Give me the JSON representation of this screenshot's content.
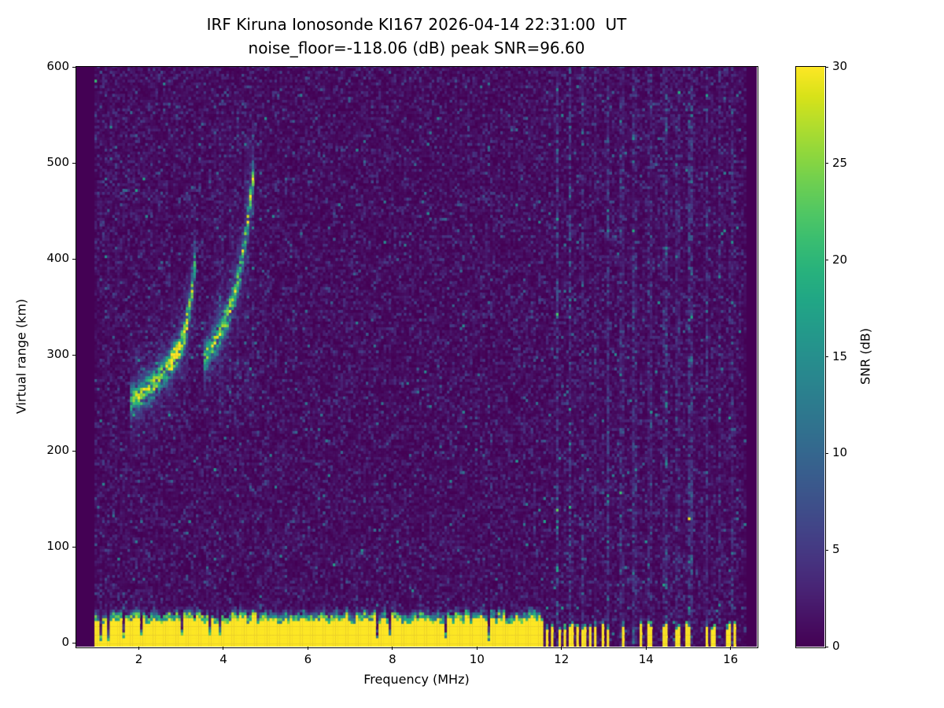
{
  "chart_data": {
    "type": "heatmap",
    "title": "IRF Kiruna Ionosonde KI167 2026-04-14 22:31:00  UT",
    "subtitle": "noise_floor=-118.06 (dB) peak SNR=96.60",
    "station": "IRF Kiruna",
    "instrument": "Ionosonde KI167",
    "timestamp_ut": "2026-04-14 22:31:00",
    "noise_floor_db": -118.06,
    "peak_snr_db": 96.6,
    "xlabel": "Frequency (MHz)",
    "ylabel": "Virtual range (km)",
    "xlim": [
      0.52,
      16.62
    ],
    "ylim": [
      -4,
      600
    ],
    "x_ticks": [
      2,
      4,
      6,
      8,
      10,
      12,
      14,
      16
    ],
    "y_ticks": [
      0,
      100,
      200,
      300,
      400,
      500,
      600
    ],
    "grid": false,
    "colorbar": {
      "label": "SNR (dB)",
      "vmin": 0,
      "vmax": 30,
      "ticks": [
        0,
        5,
        10,
        15,
        20,
        25,
        30
      ],
      "colormap": "viridis"
    },
    "features": {
      "background_noise_db_range": [
        0,
        4
      ],
      "data_freq_range_mhz": [
        0.95,
        16.35
      ],
      "ground_return_band": {
        "range_km": [
          -4,
          30
        ],
        "solid_freq_mhz": [
          0.95,
          11.6
        ],
        "intermittent_freq_mhz": [
          11.62,
          16.3
        ],
        "snr_db": 30
      },
      "echo_traces": [
        {
          "name": "ionospheric-echo-branch-1",
          "points": [
            [
              1.8,
              252
            ],
            [
              2.1,
              260
            ],
            [
              2.4,
              272
            ],
            [
              2.7,
              288
            ],
            [
              2.95,
              305
            ],
            [
              3.1,
              325
            ],
            [
              3.2,
              350
            ],
            [
              3.3,
              380
            ],
            [
              3.35,
              410
            ]
          ]
        },
        {
          "name": "ionospheric-echo-branch-2",
          "points": [
            [
              3.55,
              295
            ],
            [
              3.75,
              310
            ],
            [
              3.95,
              325
            ],
            [
              4.1,
              342
            ],
            [
              4.25,
              362
            ],
            [
              4.4,
              388
            ],
            [
              4.5,
              415
            ],
            [
              4.6,
              448
            ],
            [
              4.7,
              485
            ]
          ]
        }
      ],
      "echo_vertical_streaks_mhz": [
        3.95,
        4.15,
        4.35,
        4.55,
        4.7
      ],
      "interference_stripes_mhz": [
        11.9,
        12.2,
        12.5,
        12.8,
        13.1,
        13.45,
        13.75,
        14.1,
        14.45,
        14.75,
        15.05,
        15.45,
        15.75,
        16.05
      ],
      "bottom_dash_freqs_mhz": [
        13.45,
        13.9,
        14.1,
        14.45,
        14.75,
        15.0,
        15.45,
        15.6,
        15.95,
        16.1
      ]
    }
  }
}
